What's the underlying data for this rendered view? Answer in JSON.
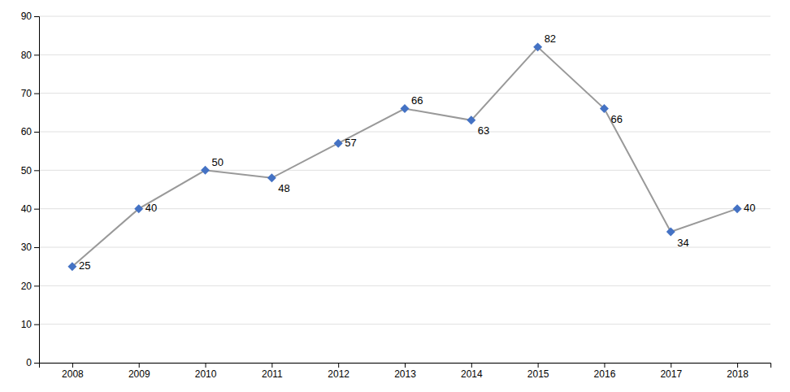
{
  "chart_data": {
    "type": "line",
    "x": [
      2008,
      2009,
      2010,
      2011,
      2012,
      2013,
      2014,
      2015,
      2016,
      2017,
      2018
    ],
    "values": [
      25,
      40,
      50,
      48,
      57,
      66,
      63,
      82,
      66,
      34,
      40
    ],
    "color": "#999999",
    "colors": [
      "#4472C4",
      "#4472C4",
      "#4472C4",
      "#4472C4",
      "#4472C4",
      "#4472C4",
      "#4472C4",
      "#4472C4",
      "#4472C4",
      "#4472C4",
      "#4472C4"
    ],
    "marker": "diamond",
    "xlim": [
      2007.5,
      2018.5
    ],
    "xticks": [
      2008,
      2009,
      2010,
      2011,
      2012,
      2013,
      2014,
      2015,
      2016,
      2017,
      2018
    ],
    "ylim": [
      0,
      90
    ],
    "yticks": [
      0,
      10,
      20,
      30,
      40,
      50,
      60,
      70,
      80,
      90
    ],
    "grid": true,
    "data_labels": true
  }
}
